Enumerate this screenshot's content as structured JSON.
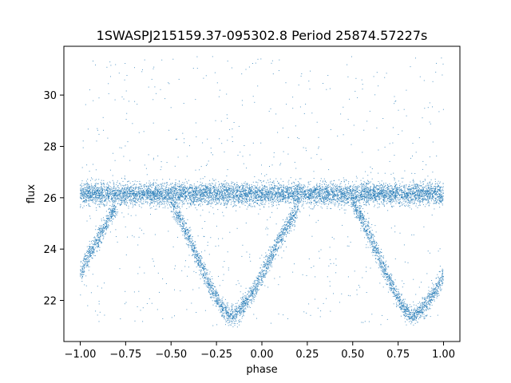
{
  "chart_data": {
    "type": "scatter",
    "title": "1SWASPJ215159.37-095302.8 Period 25874.57227s",
    "xlabel": "phase",
    "ylabel": "flux",
    "xlim": [
      -1.09,
      1.09
    ],
    "ylim": [
      20.4,
      31.9
    ],
    "x_ticks": [
      -1.0,
      -0.75,
      -0.5,
      -0.25,
      0.0,
      0.25,
      0.5,
      0.75,
      1.0
    ],
    "x_tick_labels": [
      "−1.00",
      "−0.75",
      "−0.50",
      "−0.25",
      "0.00",
      "0.25",
      "0.50",
      "0.75",
      "1.00"
    ],
    "y_ticks": [
      22,
      24,
      26,
      28,
      30
    ],
    "y_tick_labels": [
      "22",
      "24",
      "26",
      "28",
      "30"
    ],
    "grid": false,
    "marker_color": "#1f77b4",
    "series": [
      {
        "description_of_shape": "",
        "baseline_band": {
          "x_range": [
            -1.0,
            1.0
          ],
          "y_center": 26.15,
          "y_spread": 0.35
        },
        "dip_track": [
          {
            "x": -1.0,
            "y": 23.0
          },
          {
            "x": -0.95,
            "y": 23.8
          },
          {
            "x": -0.9,
            "y": 24.4
          },
          {
            "x": -0.85,
            "y": 25.1
          },
          {
            "x": -0.8,
            "y": 25.7
          },
          {
            "x": -0.5,
            "y": 25.8
          },
          {
            "x": -0.45,
            "y": 25.2
          },
          {
            "x": -0.4,
            "y": 24.4
          },
          {
            "x": -0.35,
            "y": 23.6
          },
          {
            "x": -0.3,
            "y": 22.8
          },
          {
            "x": -0.25,
            "y": 22.1
          },
          {
            "x": -0.2,
            "y": 21.5
          },
          {
            "x": -0.15,
            "y": 21.4
          },
          {
            "x": -0.1,
            "y": 21.8
          },
          {
            "x": -0.05,
            "y": 22.3
          },
          {
            "x": 0.0,
            "y": 23.0
          },
          {
            "x": 0.05,
            "y": 23.7
          },
          {
            "x": 0.1,
            "y": 24.4
          },
          {
            "x": 0.15,
            "y": 25.0
          },
          {
            "x": 0.2,
            "y": 25.6
          },
          {
            "x": 0.5,
            "y": 25.8
          },
          {
            "x": 0.55,
            "y": 25.2
          },
          {
            "x": 0.6,
            "y": 24.4
          },
          {
            "x": 0.65,
            "y": 23.6
          },
          {
            "x": 0.7,
            "y": 22.8
          },
          {
            "x": 0.75,
            "y": 22.1
          },
          {
            "x": 0.8,
            "y": 21.5
          },
          {
            "x": 0.85,
            "y": 21.4
          },
          {
            "x": 0.9,
            "y": 21.8
          },
          {
            "x": 0.95,
            "y": 22.3
          },
          {
            "x": 1.0,
            "y": 23.0
          }
        ]
      }
    ]
  }
}
